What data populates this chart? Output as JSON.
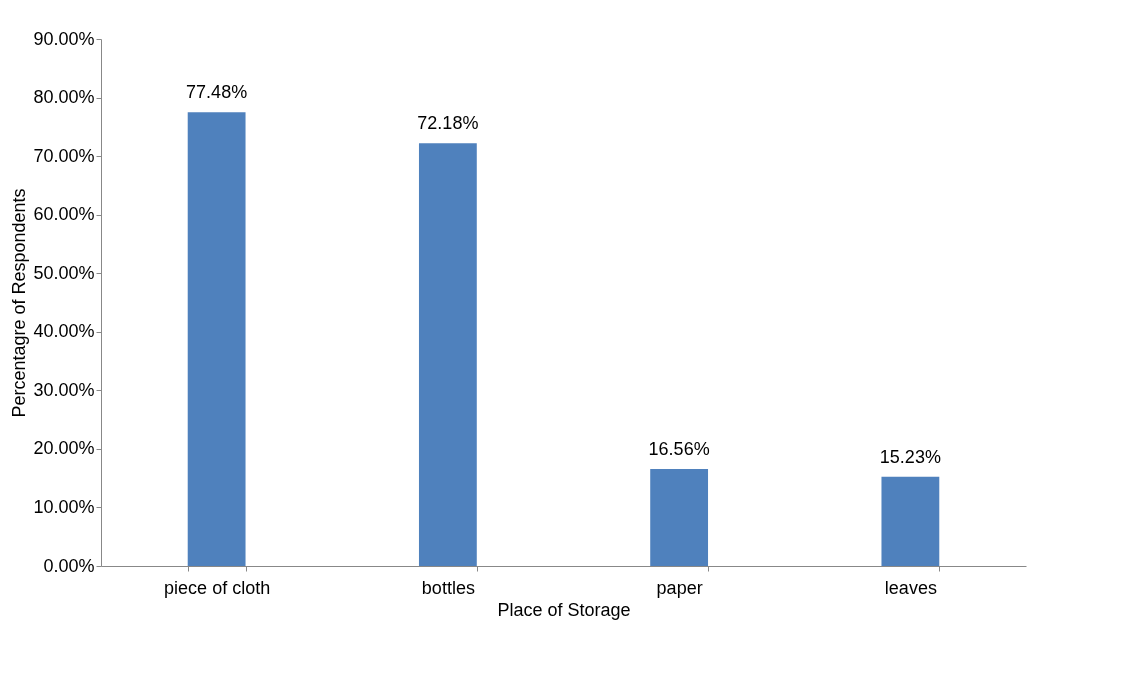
{
  "chart_data": {
    "type": "bar",
    "xlabel": "Place of Storage",
    "ylabel": "Percentagre of Respondents",
    "categories": [
      "piece of cloth",
      "bottles",
      "paper",
      "leaves"
    ],
    "values": [
      77.48,
      72.18,
      16.56,
      15.23
    ],
    "value_labels": [
      "77.48%",
      "72.18%",
      "16.56%",
      "15.23%"
    ],
    "color": "#4f81bd",
    "ylim": [
      0,
      90
    ],
    "yticks": [
      {
        "value": 0,
        "label": "0.00%"
      },
      {
        "value": 10,
        "label": "10.00%"
      },
      {
        "value": 20,
        "label": "20.00%"
      },
      {
        "value": 30,
        "label": "30.00%"
      },
      {
        "value": 40,
        "label": "40.00%"
      },
      {
        "value": 50,
        "label": "50.00%"
      },
      {
        "value": 60,
        "label": "60.00%"
      },
      {
        "value": 70,
        "label": "70.00%"
      },
      {
        "value": 80,
        "label": "80.00%"
      },
      {
        "value": 90,
        "label": "90.00%"
      }
    ]
  }
}
